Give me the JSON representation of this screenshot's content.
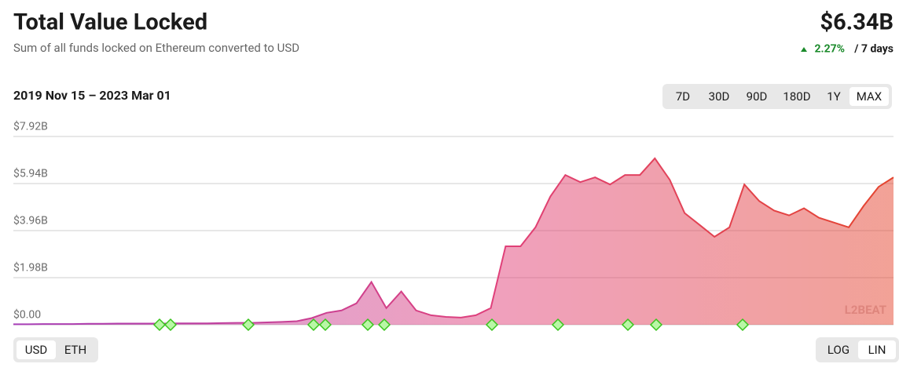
{
  "header": {
    "title": "Total Value Locked",
    "subtitle": "Sum of all funds locked on Ethereum converted to USD",
    "value": "$6.34B",
    "change": "2.27%",
    "period": "/ 7 days"
  },
  "controls": {
    "range_label": "2019 Nov 15 – 2023 Mar 01",
    "ranges": [
      "7D",
      "30D",
      "90D",
      "180D",
      "1Y",
      "MAX"
    ],
    "selected_range": "MAX",
    "currencies": [
      "USD",
      "ETH"
    ],
    "selected_currency": "USD",
    "scales": [
      "LOG",
      "LIN"
    ],
    "selected_scale": "LIN"
  },
  "logo": "L2BEAT",
  "chart_data": {
    "type": "area",
    "values": [
      0.02,
      0.02,
      0.03,
      0.03,
      0.03,
      0.04,
      0.04,
      0.05,
      0.05,
      0.05,
      0.05,
      0.06,
      0.06,
      0.06,
      0.07,
      0.08,
      0.08,
      0.1,
      0.12,
      0.15,
      0.28,
      0.5,
      0.6,
      0.9,
      1.8,
      0.7,
      1.4,
      0.6,
      0.4,
      0.33,
      0.3,
      0.4,
      0.7,
      3.3,
      3.3,
      4.1,
      5.4,
      6.3,
      6.0,
      6.2,
      5.9,
      6.3,
      6.3,
      7.0,
      6.1,
      4.7,
      4.2,
      3.7,
      4.1,
      5.9,
      5.2,
      4.8,
      4.6,
      4.9,
      4.5,
      4.3,
      4.1,
      5.0,
      5.8,
      6.2
    ],
    "ylim": [
      0,
      7.92
    ],
    "yticks": [
      {
        "value": 0,
        "label": "$0.00"
      },
      {
        "value": 1.98,
        "label": "$1.98B"
      },
      {
        "value": 3.96,
        "label": "$3.96B"
      },
      {
        "value": 5.94,
        "label": "$5.94B"
      },
      {
        "value": 7.92,
        "label": "$7.92B"
      }
    ],
    "grid": true,
    "colors": [
      "#a73fb8",
      "#e0407a",
      "#e4442e"
    ]
  }
}
